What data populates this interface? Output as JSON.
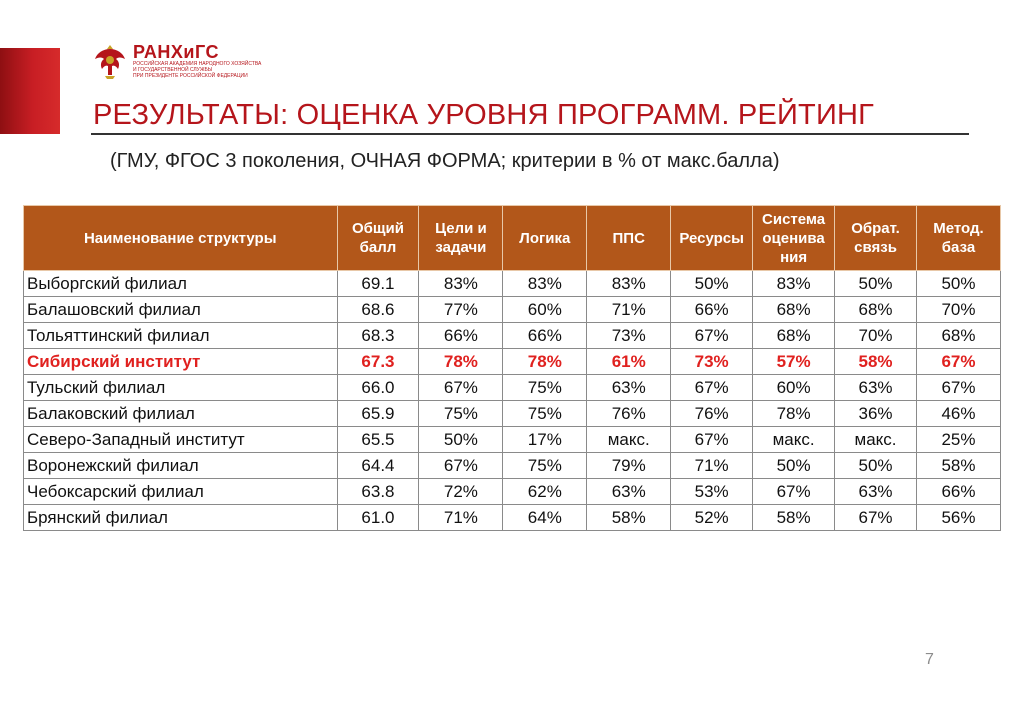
{
  "logo": {
    "name": "РАНХиГС",
    "subtitle_lines": [
      "Российская академия народного хозяйства",
      "и государственной службы",
      "при Президенте Российской Федерации"
    ]
  },
  "title": "РЕЗУЛЬТАТЫ: ОЦЕНКА УРОВНЯ ПРОГРАММ. РЕЙТИНГ",
  "subtitle": "(ГМУ, ФГОС 3 поколения, ОЧНАЯ ФОРМА; критерии в % от макс.балла)",
  "table": {
    "headers": [
      [
        "Наименование структуры"
      ],
      [
        "Общий",
        "балл"
      ],
      [
        "Цели и",
        "задачи"
      ],
      [
        "Логика"
      ],
      [
        "ППС"
      ],
      [
        "Ресурсы"
      ],
      [
        "Система",
        "оценива",
        "ния"
      ],
      [
        "Обрат.",
        "связь"
      ],
      [
        "Метод.",
        "база"
      ]
    ],
    "rows": [
      {
        "cells": [
          "Выборгский филиал",
          "69.1",
          "83%",
          "83%",
          "83%",
          "50%",
          "83%",
          "50%",
          "50%"
        ],
        "highlight": false
      },
      {
        "cells": [
          "Балашовский филиал",
          "68.6",
          "77%",
          "60%",
          "71%",
          "66%",
          "68%",
          "68%",
          "70%"
        ],
        "highlight": false
      },
      {
        "cells": [
          "Тольяттинский филиал",
          "68.3",
          "66%",
          "66%",
          "73%",
          "67%",
          "68%",
          "70%",
          "68%"
        ],
        "highlight": false
      },
      {
        "cells": [
          "Сибирский институт",
          "67.3",
          "78%",
          "78%",
          "61%",
          "73%",
          "57%",
          "58%",
          "67%"
        ],
        "highlight": true
      },
      {
        "cells": [
          "Тульский филиал",
          "66.0",
          "67%",
          "75%",
          "63%",
          "67%",
          "60%",
          "63%",
          "67%"
        ],
        "highlight": false
      },
      {
        "cells": [
          "Балаковский филиал",
          "65.9",
          "75%",
          "75%",
          "76%",
          "76%",
          "78%",
          "36%",
          "46%"
        ],
        "highlight": false
      },
      {
        "cells": [
          "Северо-Западный институт",
          "65.5",
          "50%",
          "17%",
          "макс.",
          "67%",
          "макс.",
          "макс.",
          "25%"
        ],
        "highlight": false
      },
      {
        "cells": [
          "Воронежский филиал",
          "64.4",
          "67%",
          "75%",
          "79%",
          "71%",
          "50%",
          "50%",
          "58%"
        ],
        "highlight": false
      },
      {
        "cells": [
          "Чебоксарский филиал",
          "63.8",
          "72%",
          "62%",
          "63%",
          "53%",
          "67%",
          "63%",
          "66%"
        ],
        "highlight": false
      },
      {
        "cells": [
          "Брянский филиал",
          "61.0",
          "71%",
          "64%",
          "58%",
          "52%",
          "58%",
          "67%",
          "56%"
        ],
        "highlight": false
      }
    ]
  },
  "page_number": "7",
  "colors": {
    "accent_red": "#b5151b",
    "header_orange": "#b2571a",
    "highlight_red": "#e0211f"
  }
}
